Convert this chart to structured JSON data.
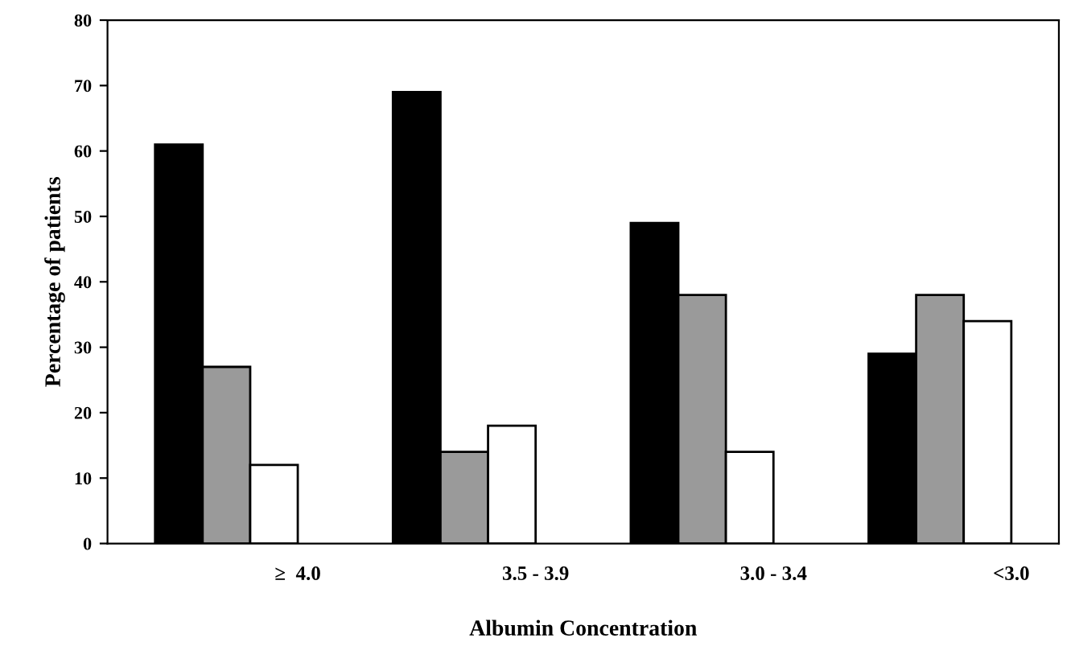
{
  "chart_data": {
    "type": "bar",
    "xlabel": "Albumin Concentration",
    "ylabel": "Percentage of patients",
    "categories": [
      "≥  4.0",
      "3.5 - 3.9",
      "3.0 - 3.4",
      "<3.0"
    ],
    "series": [
      {
        "color": "#000000",
        "values": [
          61,
          69,
          49,
          29
        ]
      },
      {
        "color": "#9a9a9a",
        "values": [
          27,
          14,
          38,
          38
        ]
      },
      {
        "color": "#ffffff",
        "values": [
          12,
          18,
          14,
          34
        ]
      }
    ],
    "ylim": [
      0,
      80
    ],
    "yticks": [
      0,
      10,
      20,
      30,
      40,
      50,
      60,
      70,
      80
    ],
    "grid": false,
    "legend": false
  }
}
